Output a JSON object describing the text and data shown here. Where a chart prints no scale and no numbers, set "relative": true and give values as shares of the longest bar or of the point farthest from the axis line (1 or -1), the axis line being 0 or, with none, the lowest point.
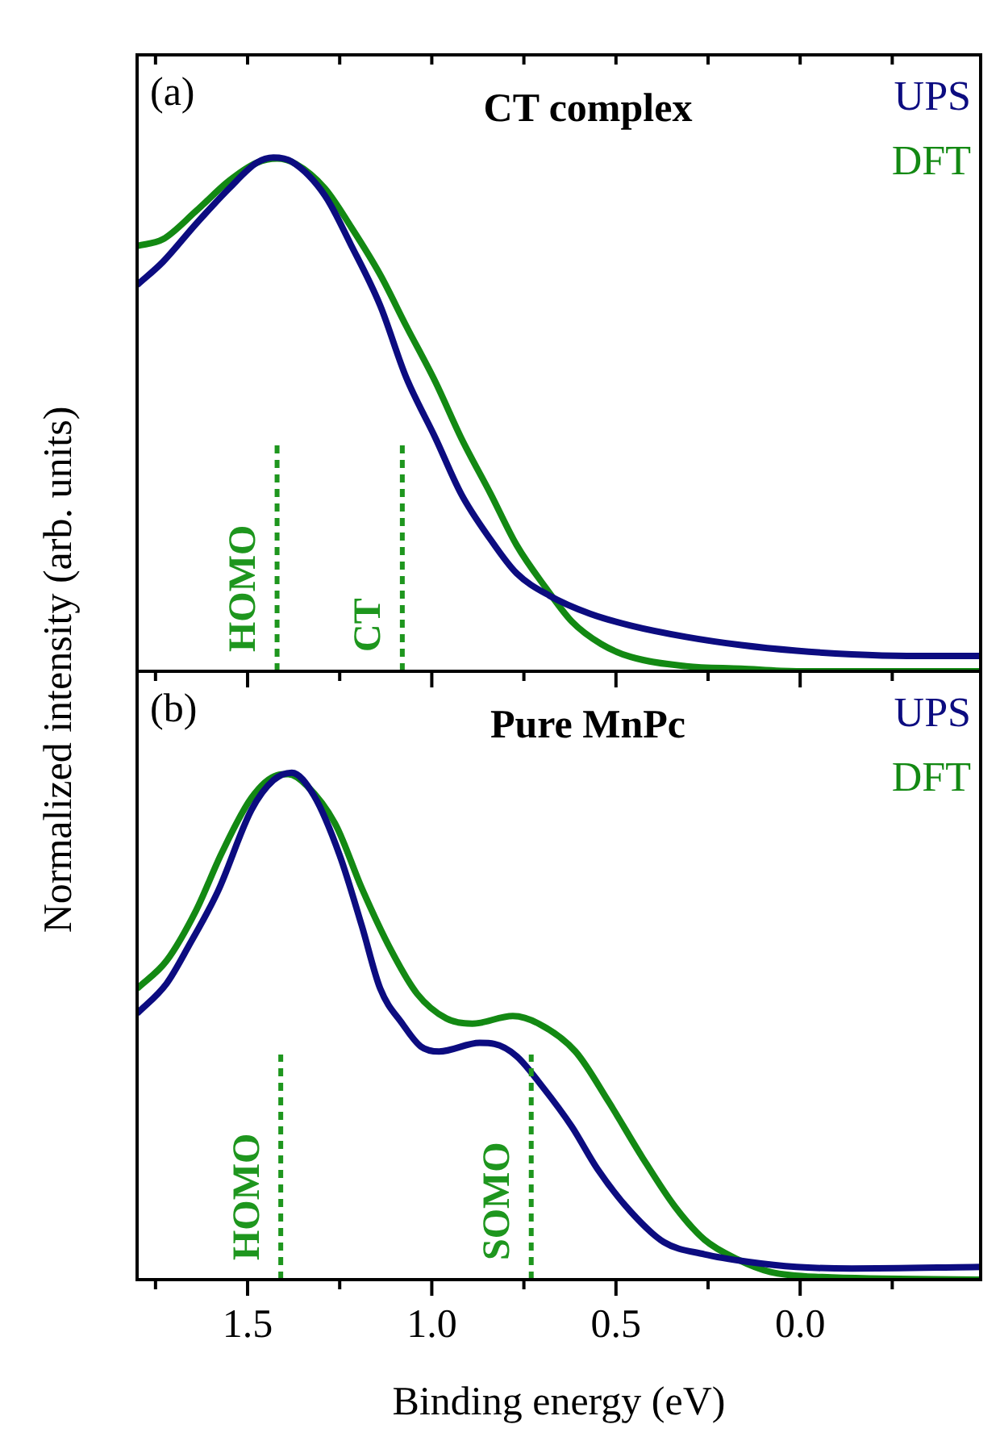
{
  "chart_data": [
    {
      "type": "line",
      "title": "CT complex",
      "ylabel": "Normalized intensity (arb. units)",
      "annotations": [
        "(a)"
      ],
      "relative": true,
      "legend": "top right",
      "tick_labels": false,
      "xlim": [
        1.8,
        -0.49
      ],
      "xticks": [
        {
          "value": 1.75,
          "label": null
        },
        {
          "value": 1.5,
          "label": null
        },
        {
          "value": 1.25,
          "label": null
        },
        {
          "value": 1,
          "label": null
        },
        {
          "value": 0.75,
          "label": null
        },
        {
          "value": 0.5,
          "label": null
        },
        {
          "value": 0.25,
          "label": null
        },
        {
          "value": 0,
          "label": null
        },
        {
          "value": -0.25,
          "label": null
        }
      ],
      "series": [
        {
          "name": "UPS",
          "color": "#0c0c80",
          "x": [
            1.8,
            1.73,
            1.64,
            1.55,
            1.475,
            1.43,
            1.38,
            1.29,
            1.22,
            1.14,
            1.07,
            0.99,
            0.92,
            0.84,
            0.77,
            0.68,
            0.57,
            0.46,
            0.31,
            0.16,
            0.01,
            -0.14,
            -0.29,
            -0.49
          ],
          "values": [
            0.752,
            0.797,
            0.871,
            0.94,
            0.99,
            1.0,
            0.992,
            0.926,
            0.831,
            0.712,
            0.573,
            0.454,
            0.345,
            0.256,
            0.191,
            0.147,
            0.112,
            0.089,
            0.067,
            0.051,
            0.04,
            0.033,
            0.03,
            0.03
          ]
        },
        {
          "name": "DFT",
          "color": "#138913",
          "x": [
            1.8,
            1.73,
            1.64,
            1.55,
            1.475,
            1.42,
            1.37,
            1.29,
            1.22,
            1.14,
            1.07,
            0.99,
            0.92,
            0.84,
            0.77,
            0.69,
            0.62,
            0.54,
            0.46,
            0.31,
            0.16,
            0.01,
            -0.49
          ],
          "values": [
            0.828,
            0.841,
            0.896,
            0.955,
            0.99,
            0.998,
            0.988,
            0.94,
            0.866,
            0.772,
            0.673,
            0.563,
            0.454,
            0.345,
            0.246,
            0.162,
            0.097,
            0.053,
            0.028,
            0.01,
            0.005,
            0.0,
            0.0
          ]
        }
      ],
      "ref_lines": [
        {
          "axis": "x",
          "value": 1.42,
          "label": "HOMO",
          "color": "#1e961e",
          "line_style": "dashed"
        },
        {
          "axis": "x",
          "value": 1.08,
          "label": "CT",
          "color": "#1e961e",
          "line_style": "dashed"
        }
      ]
    },
    {
      "type": "line",
      "title": "Pure MnPc",
      "xlabel": "Binding energy (eV)",
      "annotations": [
        "(b)"
      ],
      "relative": true,
      "legend": "top right",
      "tick_labels": "x",
      "xlim": [
        1.8,
        -0.49
      ],
      "xticks": [
        {
          "value": 1.75,
          "label": null
        },
        1.5,
        {
          "value": 1.25,
          "label": null
        },
        {
          "value": 1,
          "label": "1.0"
        },
        {
          "value": 0.75,
          "label": null
        },
        0.5,
        {
          "value": 0.25,
          "label": null
        },
        {
          "value": 0,
          "label": "0.0"
        },
        {
          "value": -0.25,
          "label": null
        }
      ],
      "series": [
        {
          "name": "UPS",
          "color": "#0c0c80",
          "x": [
            1.8,
            1.72,
            1.66,
            1.58,
            1.49,
            1.43,
            1.38,
            1.32,
            1.25,
            1.19,
            1.14,
            1.08,
            1.03,
            0.98,
            0.87,
            0.83,
            0.77,
            0.7,
            0.62,
            0.55,
            0.46,
            0.37,
            0.26,
            0.14,
            0.01,
            -0.14,
            -0.49
          ],
          "values": [
            0.525,
            0.584,
            0.658,
            0.767,
            0.926,
            0.985,
            1.0,
            0.955,
            0.837,
            0.698,
            0.574,
            0.505,
            0.46,
            0.45,
            0.467,
            0.465,
            0.441,
            0.381,
            0.302,
            0.218,
            0.134,
            0.074,
            0.05,
            0.035,
            0.025,
            0.022,
            0.025
          ]
        },
        {
          "name": "DFT",
          "color": "#138913",
          "x": [
            1.8,
            1.72,
            1.64,
            1.57,
            1.49,
            1.42,
            1.39,
            1.34,
            1.26,
            1.19,
            1.11,
            1.04,
            0.96,
            0.89,
            0.78,
            0.71,
            0.61,
            0.52,
            0.43,
            0.34,
            0.26,
            0.17,
            0.08,
            -0.06,
            -0.49
          ],
          "values": [
            0.574,
            0.629,
            0.728,
            0.842,
            0.95,
            0.995,
            0.997,
            0.975,
            0.896,
            0.772,
            0.649,
            0.564,
            0.515,
            0.505,
            0.52,
            0.505,
            0.45,
            0.351,
            0.243,
            0.144,
            0.079,
            0.04,
            0.015,
            0.005,
            0.0
          ]
        }
      ],
      "ref_lines": [
        {
          "axis": "x",
          "value": 1.41,
          "label": "HOMO",
          "color": "#1e961e",
          "line_style": "dashed"
        },
        {
          "axis": "x",
          "value": 0.73,
          "label": "SOMO",
          "color": "#1e961e",
          "line_style": "dashed"
        }
      ]
    }
  ]
}
